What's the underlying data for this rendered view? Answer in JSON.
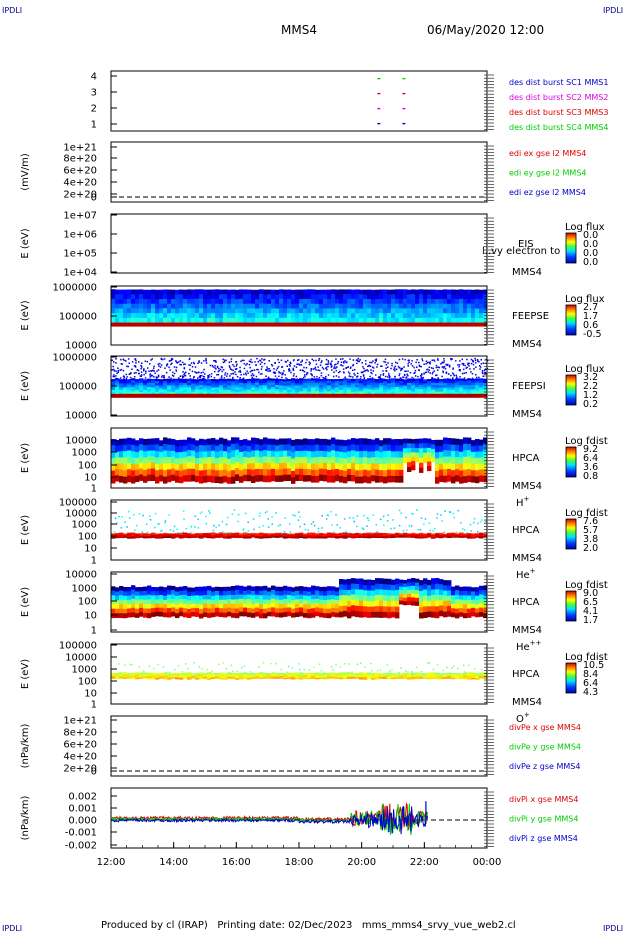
{
  "header": {
    "corner_tag": "IPDLI",
    "spacecraft": "MMS4",
    "datetime": "06/May/2020 12:00"
  },
  "footer": {
    "produced_by": "Produced by cl (IRAP)",
    "printing_date": "Printing date: 02/Dec/2023",
    "script": "mms_mms4_srvy_vue_web2.cl"
  },
  "colors": {
    "blue": "#0000cc",
    "magenta": "#dd00dd",
    "red": "#dd0000",
    "green": "#00cc00",
    "frame": "#000000",
    "spectrogram_low": "#0000aa",
    "spectrogram_high": "#aa0000"
  },
  "chart_data": [
    {
      "type": "scatter",
      "name": "burst-availability",
      "ylabel": "",
      "yticks": [
        "4",
        "3",
        "2",
        "1"
      ],
      "ylim": [
        0.5,
        4.5
      ],
      "legend": [
        {
          "text": "des dist burst SC1 MMS1",
          "color": "#0000cc"
        },
        {
          "text": "des dist burst SC2 MMS2",
          "color": "#dd00dd"
        },
        {
          "text": "des dist burst SC3 MMS3",
          "color": "#dd0000"
        },
        {
          "text": "des dist burst SC4 MMS4",
          "color": "#00cc00"
        }
      ],
      "series": [
        {
          "y": 4,
          "color": "#00cc00",
          "x": [
            20.5,
            21.3
          ]
        },
        {
          "y": 3,
          "color": "#dd0000",
          "x": [
            20.5,
            21.3
          ]
        },
        {
          "y": 2,
          "color": "#dd00dd",
          "x": [
            20.5,
            21.3
          ]
        },
        {
          "y": 1,
          "color": "#0000cc",
          "x": [
            20.5,
            21.3
          ]
        }
      ]
    },
    {
      "type": "line",
      "name": "edi-electric-field",
      "ylabel": "(mV/m)",
      "yticks": [
        "1e+21",
        "8e+20",
        "6e+20",
        "4e+20",
        "2e+20",
        "0"
      ],
      "ylim": [
        0,
        1e+21
      ],
      "legend": [
        {
          "text": "edi ex gse l2 MMS4",
          "color": "#dd0000"
        },
        {
          "text": "edi ey gse l2 MMS4",
          "color": "#00cc00"
        },
        {
          "text": "edi ez gse l2 MMS4",
          "color": "#0000cc"
        }
      ]
    },
    {
      "type": "heatmap",
      "name": "eis",
      "ylabel": "E (eV)",
      "yticks": [
        "1e+07",
        "1e+06",
        "1e+05",
        "1e+04"
      ],
      "ylim": [
        10000.0,
        10000000.0
      ],
      "instrument": [
        "EIS",
        "MMS4"
      ],
      "overlay_text": "l..vy electron to",
      "colorbar": {
        "title": "Log flux",
        "ticks": [
          "0.0",
          "0.0",
          "0.0",
          "0.0"
        ]
      }
    },
    {
      "type": "heatmap",
      "name": "feeps-electrons",
      "ylabel": "E (eV)",
      "yticks": [
        "1000000",
        "100000",
        "10000"
      ],
      "ylim": [
        10000.0,
        1000000.0
      ],
      "instrument": [
        "FEEPSE",
        "MMS4"
      ],
      "colorbar": {
        "title": "Log flux",
        "ticks": [
          "2.7",
          "1.7",
          "0.6",
          "-0.5"
        ]
      }
    },
    {
      "type": "heatmap",
      "name": "feeps-ions",
      "ylabel": "E (eV)",
      "yticks": [
        "1000000",
        "100000",
        "10000"
      ],
      "ylim": [
        10000.0,
        1000000.0
      ],
      "instrument": [
        "FEEPSI",
        "MMS4"
      ],
      "colorbar": {
        "title": "Log flux",
        "ticks": [
          "3.2",
          "2.2",
          "1.2",
          "0.2"
        ]
      }
    },
    {
      "type": "heatmap",
      "name": "hpca-h",
      "ylabel": "E (eV)",
      "yticks": [
        "10000",
        "1000",
        "100",
        "10",
        "1"
      ],
      "ylim": [
        1,
        30000
      ],
      "instrument": [
        "HPCA",
        "MMS4"
      ],
      "species": "H",
      "species_charge": "+",
      "colorbar": {
        "title": "Log fdist",
        "ticks": [
          "9.2",
          "6.4",
          "3.6",
          "0.8"
        ]
      }
    },
    {
      "type": "heatmap",
      "name": "hpca-he",
      "ylabel": "E (eV)",
      "yticks": [
        "100000",
        "10000",
        "1000",
        "100",
        "10",
        "1"
      ],
      "ylim": [
        1,
        100000
      ],
      "instrument": [
        "HPCA",
        "MMS4"
      ],
      "species": "He",
      "species_charge": "+",
      "colorbar": {
        "title": "Log fdist",
        "ticks": [
          "7.6",
          "5.7",
          "3.8",
          "2.0"
        ]
      }
    },
    {
      "type": "heatmap",
      "name": "hpca-he2",
      "ylabel": "E (eV)",
      "yticks": [
        "10000",
        "1000",
        "100",
        "10",
        "1"
      ],
      "ylim": [
        1,
        10000
      ],
      "instrument": [
        "HPCA",
        "MMS4"
      ],
      "species": "He",
      "species_charge": "++",
      "colorbar": {
        "title": "Log fdist",
        "ticks": [
          "9.0",
          "6.5",
          "4.1",
          "1.7"
        ]
      }
    },
    {
      "type": "heatmap",
      "name": "hpca-o",
      "ylabel": "E (eV)",
      "yticks": [
        "100000",
        "10000",
        "1000",
        "100",
        "10",
        "1"
      ],
      "ylim": [
        1,
        100000
      ],
      "instrument": [
        "HPCA",
        "MMS4"
      ],
      "species": "O",
      "species_charge": "+",
      "colorbar": {
        "title": "Log fdist",
        "ticks": [
          "10.5",
          "8.4",
          "6.4",
          "4.3"
        ]
      }
    },
    {
      "type": "line",
      "name": "pressure-gradient-electrons",
      "ylabel": "(nPa/km)",
      "yticks": [
        "1e+21",
        "8e+20",
        "6e+20",
        "4e+20",
        "2e+20",
        "0"
      ],
      "ylim": [
        0,
        1e+21
      ],
      "legend": [
        {
          "text": "divPe x gse MMS4",
          "color": "#dd0000"
        },
        {
          "text": "divPe y gse MMS4",
          "color": "#00cc00"
        },
        {
          "text": "divPe z gse MMS4",
          "color": "#0000cc"
        }
      ]
    },
    {
      "type": "line",
      "name": "pressure-gradient-ions",
      "ylabel": "(nPa/km)",
      "yticks": [
        "0.002",
        "0.001",
        "0.000",
        "-0.001",
        "-0.002"
      ],
      "ylim": [
        -0.0023,
        0.0027
      ],
      "legend": [
        {
          "text": "divPi x gse MMS4",
          "color": "#dd0000"
        },
        {
          "text": "divPi y gse MMS4",
          "color": "#00cc00"
        },
        {
          "text": "divPi z gse MMS4",
          "color": "#0000cc"
        }
      ]
    }
  ],
  "x_axis": {
    "range_hours": [
      12,
      24
    ],
    "ticks": [
      "12:00",
      "14:00",
      "16:00",
      "18:00",
      "20:00",
      "22:00",
      "00:00"
    ]
  }
}
